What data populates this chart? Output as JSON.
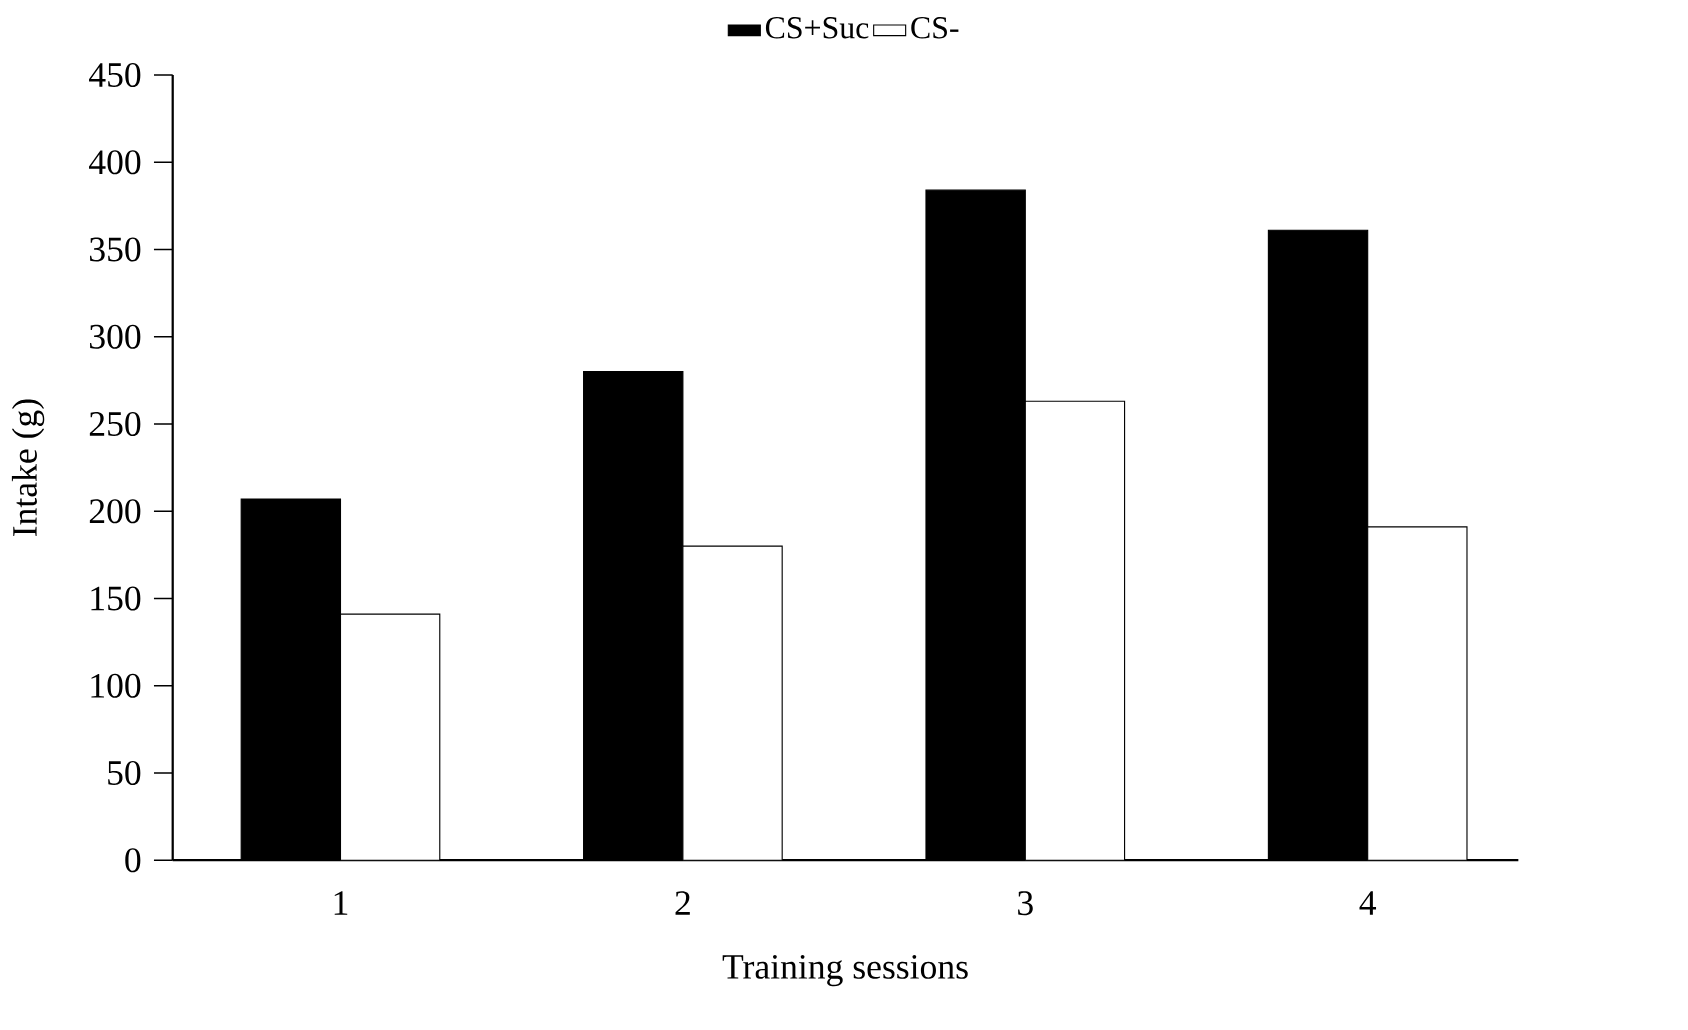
{
  "chart_data": {
    "type": "bar",
    "xlabel": "Training sessions",
    "ylabel": "Intake (g)",
    "categories": [
      "1",
      "2",
      "3",
      "4"
    ],
    "series": [
      {
        "name": "CS+Suc",
        "color": "#000000",
        "values": [
          207,
          280,
          384,
          361
        ]
      },
      {
        "name": "CS-",
        "color": "#ffffff",
        "values": [
          141,
          180,
          263,
          191
        ]
      }
    ],
    "ylim": [
      0,
      450
    ],
    "yticks": [
      0,
      50,
      100,
      150,
      200,
      250,
      300,
      350,
      400,
      450
    ],
    "grid": false,
    "legend": "top"
  }
}
